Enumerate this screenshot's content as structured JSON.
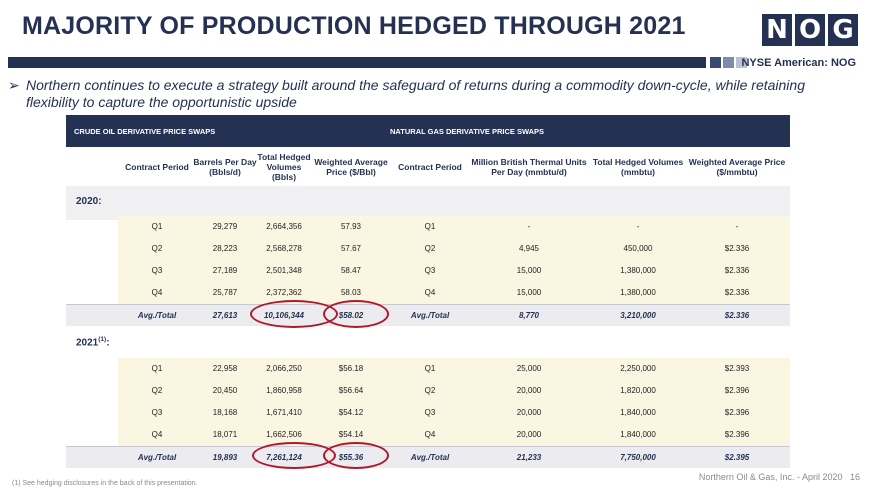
{
  "title": "MAJORITY OF PRODUCTION HEDGED THROUGH 2021",
  "logo_letters": [
    "N",
    "O",
    "G"
  ],
  "exchange": "NYSE American: NOG",
  "bullet_marker": "➢",
  "bullet": "Northern continues to execute a strategy built around the safeguard of returns during a commodity down-cycle, while retaining flexibility to capture the opportunistic upside",
  "table": {
    "oil_section": "CRUDE OIL DERIVATIVE PRICE SWAPS",
    "gas_section": "NATURAL GAS DERIVATIVE PRICE SWAPS",
    "headers": [
      "Contract Period",
      "Barrels Per Day (Bbls/d)",
      "Total Hedged Volumes (Bbls)",
      "Weighted Average Price ($/Bbl)",
      "Contract Period",
      "Million British Thermal Units Per Day (mmbtu/d)",
      "Total Hedged Volumes (mmbtu)",
      "Weighted Average Price ($/mmbtu)"
    ],
    "year_2020": "2020:",
    "year_2021": "2021",
    "year_2021_sup": "(1)",
    "year_2021_suffix": ":",
    "rows_2020": [
      [
        "Q1",
        "29,279",
        "2,664,356",
        "57.93",
        "Q1",
        "-",
        "-",
        "-"
      ],
      [
        "Q2",
        "28,223",
        "2,568,278",
        "57.67",
        "Q2",
        "4,945",
        "450,000",
        "$2.336"
      ],
      [
        "Q3",
        "27,189",
        "2,501,348",
        "58.47",
        "Q3",
        "15,000",
        "1,380,000",
        "$2.336"
      ],
      [
        "Q4",
        "25,787",
        "2,372,362",
        "58.03",
        "Q4",
        "15,000",
        "1,380,000",
        "$2.336"
      ]
    ],
    "total_2020": [
      "Avg./Total",
      "27,613",
      "10,106,344",
      "$58.02",
      "Avg./Total",
      "8,770",
      "3,210,000",
      "$2.336"
    ],
    "rows_2021": [
      [
        "Q1",
        "22,958",
        "2,066,250",
        "$56.18",
        "Q1",
        "25,000",
        "2,250,000",
        "$2.393"
      ],
      [
        "Q2",
        "20,450",
        "1,860,958",
        "$56.64",
        "Q2",
        "20,000",
        "1,820,000",
        "$2.396"
      ],
      [
        "Q3",
        "18,168",
        "1,671,410",
        "$54.12",
        "Q3",
        "20,000",
        "1,840,000",
        "$2.396"
      ],
      [
        "Q4",
        "18,071",
        "1,662,506",
        "$54.14",
        "Q4",
        "20,000",
        "1,840,000",
        "$2.396"
      ]
    ],
    "total_2021": [
      "Avg./Total",
      "19,893",
      "7,261,124",
      "$55.36",
      "Avg./Total",
      "21,233",
      "7,750,000",
      "$2.395"
    ]
  },
  "footnote": "(1) See hedging disclosures in the back of this presentation.",
  "footer": "Northern Oil & Gas, Inc. - April 2020",
  "page_number": "16",
  "colors": {
    "navy": "#243152",
    "cream": "#fbf6e2",
    "highlight_oval": "#b0182a"
  }
}
